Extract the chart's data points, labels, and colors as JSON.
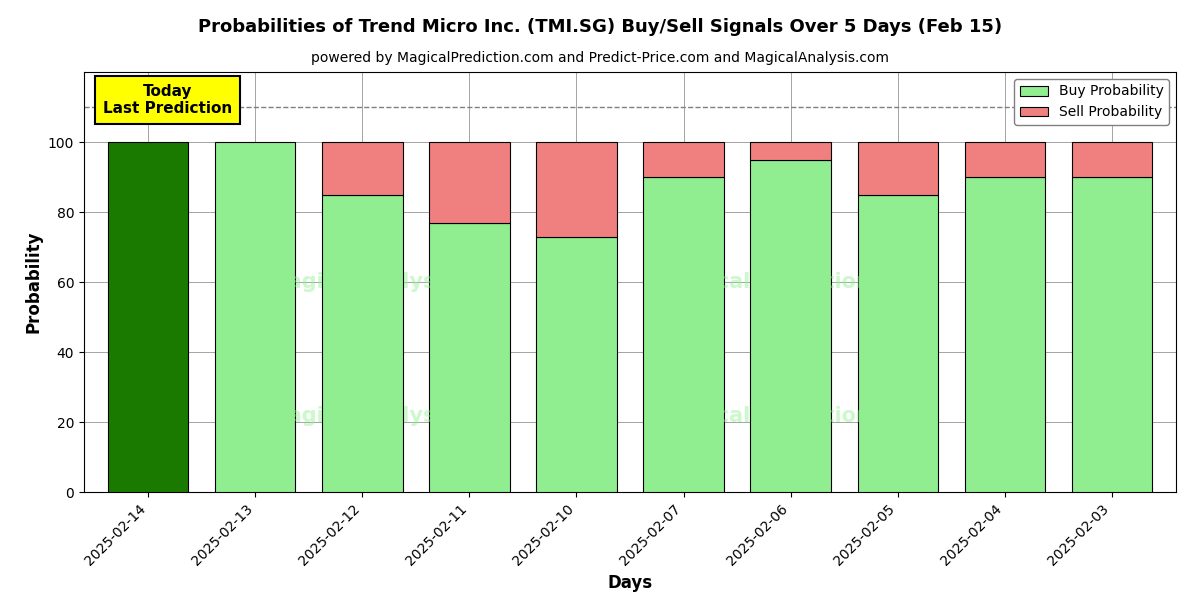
{
  "title": "Probabilities of Trend Micro Inc. (TMI.SG) Buy/Sell Signals Over 5 Days (Feb 15)",
  "subtitle": "powered by MagicalPrediction.com and Predict-Price.com and MagicalAnalysis.com",
  "xlabel": "Days",
  "ylabel": "Probability",
  "dates": [
    "2025-02-14",
    "2025-02-13",
    "2025-02-12",
    "2025-02-11",
    "2025-02-10",
    "2025-02-07",
    "2025-02-06",
    "2025-02-05",
    "2025-02-04",
    "2025-02-03"
  ],
  "buy_values": [
    100,
    100,
    85,
    77,
    73,
    90,
    95,
    85,
    90,
    90
  ],
  "sell_values": [
    0,
    0,
    15,
    23,
    27,
    10,
    5,
    15,
    10,
    10
  ],
  "today_bar_color": "#1a7a00",
  "buy_bar_color": "#90EE90",
  "sell_bar_color": "#F08080",
  "today_label_bg": "#FFFF00",
  "today_label_text": "Today\nLast Prediction",
  "legend_buy": "Buy Probability",
  "legend_sell": "Sell Probability",
  "ylim": [
    0,
    120
  ],
  "yticks": [
    0,
    20,
    40,
    60,
    80,
    100
  ],
  "dashed_line_y": 110,
  "figsize": [
    12.0,
    6.0
  ],
  "dpi": 100
}
